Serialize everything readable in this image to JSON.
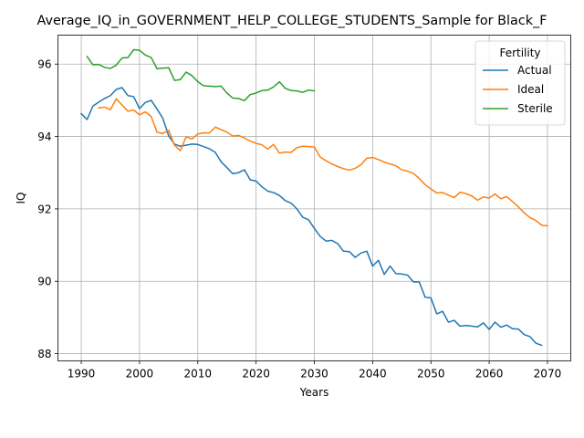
{
  "chart_data": {
    "type": "line",
    "title": "Average_IQ_in_GOVERNMENT_HELP_COLLEGE_STUDENTS_Sample for Black_F",
    "xlabel": "Years",
    "ylabel": "IQ",
    "xlim": [
      1986.0,
      2074.0
    ],
    "ylim": [
      87.8,
      96.8
    ],
    "xticks": [
      1990,
      2000,
      2010,
      2020,
      2030,
      2040,
      2050,
      2060,
      2070
    ],
    "yticks": [
      88,
      90,
      92,
      94,
      96
    ],
    "grid": true,
    "legend": {
      "title": "Fertility",
      "location": "top-right"
    },
    "series": [
      {
        "name": "Actual",
        "color": "#1f77b4",
        "x_start": 1990,
        "values": [
          94.63,
          94.47,
          94.84,
          94.95,
          95.05,
          95.13,
          95.3,
          95.35,
          95.13,
          95.1,
          94.77,
          94.94,
          95.0,
          94.76,
          94.5,
          94.02,
          93.79,
          93.73,
          93.76,
          93.79,
          93.78,
          93.72,
          93.66,
          93.56,
          93.3,
          93.14,
          92.97,
          93.0,
          93.08,
          92.8,
          92.77,
          92.61,
          92.49,
          92.45,
          92.37,
          92.23,
          92.16,
          92.0,
          91.77,
          91.7,
          91.46,
          91.24,
          91.11,
          91.13,
          91.04,
          90.83,
          90.82,
          90.66,
          90.78,
          90.83,
          90.42,
          90.58,
          90.19,
          90.42,
          90.21,
          90.2,
          90.17,
          89.98,
          89.98,
          89.56,
          89.54,
          89.1,
          89.17,
          88.87,
          88.92,
          88.76,
          88.78,
          88.76,
          88.74,
          88.85,
          88.67,
          88.87,
          88.73,
          88.79,
          88.69,
          88.68,
          88.53,
          88.47,
          88.29,
          88.23
        ]
      },
      {
        "name": "Ideal",
        "color": "#ff7f0e",
        "x_start": 1993,
        "values": [
          94.79,
          94.81,
          94.74,
          95.04,
          94.87,
          94.7,
          94.73,
          94.6,
          94.68,
          94.55,
          94.12,
          94.08,
          94.17,
          93.76,
          93.61,
          93.99,
          93.93,
          94.07,
          94.1,
          94.1,
          94.26,
          94.19,
          94.12,
          94.01,
          94.03,
          93.96,
          93.87,
          93.81,
          93.77,
          93.65,
          93.78,
          93.54,
          93.57,
          93.56,
          93.69,
          93.73,
          93.72,
          93.71,
          93.43,
          93.33,
          93.24,
          93.17,
          93.11,
          93.07,
          93.12,
          93.22,
          93.4,
          93.42,
          93.36,
          93.29,
          93.24,
          93.19,
          93.08,
          93.04,
          92.98,
          92.84,
          92.67,
          92.55,
          92.44,
          92.45,
          92.38,
          92.31,
          92.46,
          92.42,
          92.36,
          92.24,
          92.33,
          92.3,
          92.41,
          92.28,
          92.34,
          92.2,
          92.06,
          91.89,
          91.76,
          91.68,
          91.55,
          91.53
        ]
      },
      {
        "name": "Sterile",
        "color": "#2ca02c",
        "x_start": 1991,
        "values": [
          96.21,
          95.98,
          95.99,
          95.91,
          95.88,
          95.97,
          96.17,
          96.18,
          96.4,
          96.38,
          96.25,
          96.18,
          95.87,
          95.89,
          95.9,
          95.55,
          95.57,
          95.78,
          95.68,
          95.51,
          95.4,
          95.39,
          95.38,
          95.39,
          95.2,
          95.06,
          95.05,
          94.99,
          95.16,
          95.2,
          95.27,
          95.28,
          95.37,
          95.51,
          95.33,
          95.27,
          95.26,
          95.22,
          95.28,
          95.26
        ]
      }
    ]
  }
}
